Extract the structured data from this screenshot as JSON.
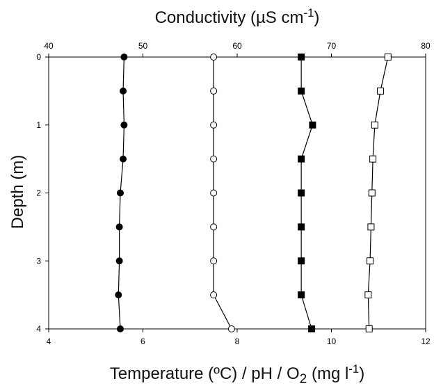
{
  "chart_data": {
    "type": "line",
    "top_axis": {
      "label_prefix": "Conductivity (µS cm",
      "label_sup": "-1",
      "label_suffix": ")",
      "range": [
        40,
        80
      ],
      "ticks": [
        "40",
        "50",
        "60",
        "70",
        "80"
      ]
    },
    "bottom_axis": {
      "label_prefix": "Temperature (ºC) / pH / O",
      "label_sub": "2",
      "label_mid": " (mg l",
      "label_sup": "-1",
      "label_suffix": ")",
      "range": [
        4,
        12
      ],
      "ticks": [
        "4",
        "6",
        "8",
        "10",
        "12"
      ]
    },
    "y_axis": {
      "label": "Depth (m)",
      "range": [
        0,
        4
      ],
      "inverted": true,
      "ticks": [
        "0",
        "1",
        "2",
        "3",
        "4"
      ]
    },
    "depths": [
      0,
      0.5,
      1,
      1.5,
      2,
      2.5,
      3,
      3.5,
      4
    ],
    "series": [
      {
        "marker": "filled-circle",
        "axis": "bottom",
        "values": [
          5.6,
          5.58,
          5.6,
          5.58,
          5.52,
          5.5,
          5.5,
          5.48,
          5.52
        ]
      },
      {
        "marker": "open-circle",
        "axis": "bottom",
        "values": [
          7.5,
          7.5,
          7.5,
          7.5,
          7.5,
          7.5,
          7.5,
          7.5,
          7.88
        ]
      },
      {
        "marker": "filled-square",
        "axis": "top",
        "values": [
          66.8,
          66.8,
          68.0,
          66.8,
          66.8,
          66.8,
          66.8,
          66.8,
          67.9
        ]
      },
      {
        "marker": "open-square",
        "axis": "top",
        "values": [
          76.0,
          75.2,
          74.6,
          74.4,
          74.3,
          74.2,
          74.1,
          73.9,
          74.0
        ]
      }
    ],
    "grid": false,
    "colors": {
      "line": "#000000",
      "fill": "#000000",
      "open_fill": "#ffffff"
    }
  }
}
